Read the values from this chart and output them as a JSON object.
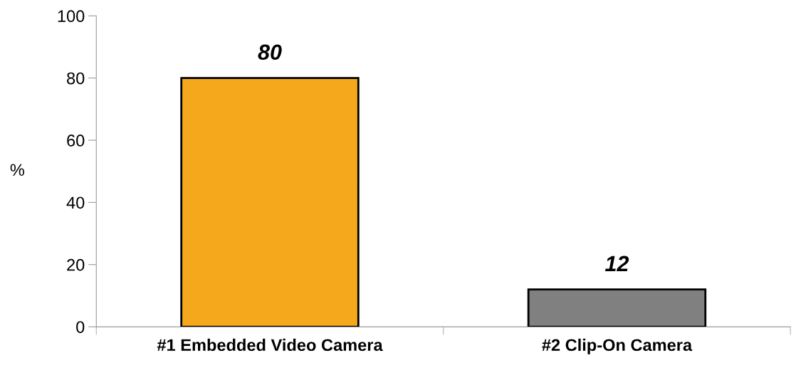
{
  "chart_data": {
    "type": "bar",
    "ylabel": "%",
    "categories": [
      "#1 Embedded Video Camera",
      "#2 Clip-On Camera"
    ],
    "values": [
      80,
      12
    ],
    "colors": [
      "#f5a81c",
      "#808080"
    ],
    "ylim": [
      0,
      100
    ],
    "yticks": [
      0,
      20,
      40,
      60,
      80,
      100
    ],
    "data_labels": true,
    "grid": false,
    "legend": false
  }
}
